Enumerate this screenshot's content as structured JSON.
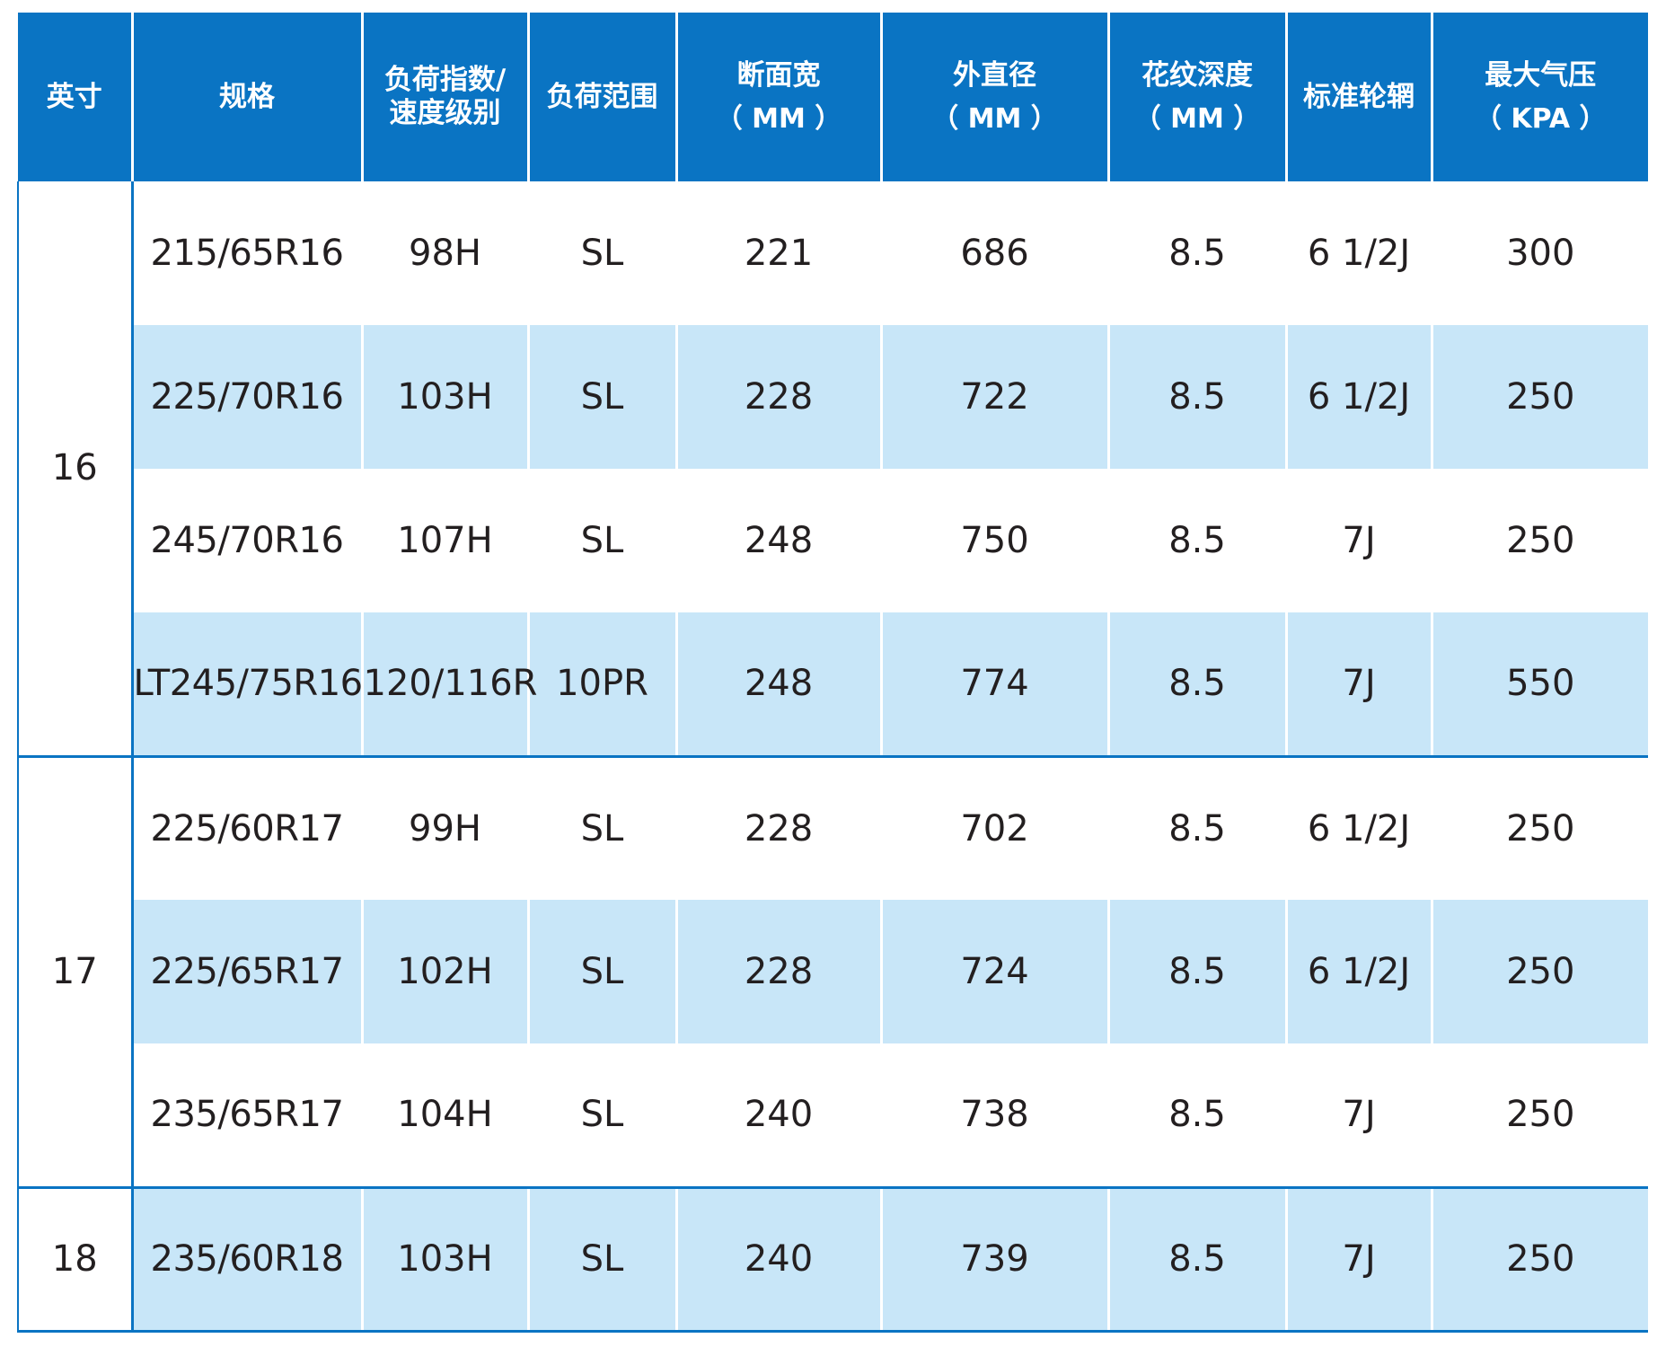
{
  "header": {
    "inch": "英寸",
    "spec": "规格",
    "load_speed_line1": "负荷指数/",
    "load_speed_line2": "速度级别",
    "load_range": "负荷范围",
    "section_width": "断面宽",
    "section_width_unit": "（ MM ）",
    "outer_diameter": "外直径",
    "outer_diameter_unit": "（ MM ）",
    "tread_depth": "花纹深度",
    "tread_depth_unit": "（ MM ）",
    "std_rim": "标准轮辋",
    "max_pressure": "最大气压",
    "max_pressure_unit": "（ KPA ）"
  },
  "groups": [
    {
      "inch": "16",
      "rows": [
        {
          "spec": "215/65R16",
          "load_speed": "98H",
          "load_range": "SL",
          "width": "221",
          "diameter": "686",
          "depth": "8.5",
          "rim": "6 1/2J",
          "pressure": "300"
        },
        {
          "spec": "225/70R16",
          "load_speed": "103H",
          "load_range": "SL",
          "width": "228",
          "diameter": "722",
          "depth": "8.5",
          "rim": "6 1/2J",
          "pressure": "250"
        },
        {
          "spec": "245/70R16",
          "load_speed": "107H",
          "load_range": "SL",
          "width": "248",
          "diameter": "750",
          "depth": "8.5",
          "rim": "7J",
          "pressure": "250"
        },
        {
          "spec": "LT245/75R16",
          "load_speed": "120/116R",
          "load_range": "10PR",
          "width": "248",
          "diameter": "774",
          "depth": "8.5",
          "rim": "7J",
          "pressure": "550"
        }
      ]
    },
    {
      "inch": "17",
      "rows": [
        {
          "spec": "225/60R17",
          "load_speed": "99H",
          "load_range": "SL",
          "width": "228",
          "diameter": "702",
          "depth": "8.5",
          "rim": "6 1/2J",
          "pressure": "250"
        },
        {
          "spec": "225/65R17",
          "load_speed": "102H",
          "load_range": "SL",
          "width": "228",
          "diameter": "724",
          "depth": "8.5",
          "rim": "6 1/2J",
          "pressure": "250"
        },
        {
          "spec": "235/65R17",
          "load_speed": "104H",
          "load_range": "SL",
          "width": "240",
          "diameter": "738",
          "depth": "8.5",
          "rim": "7J",
          "pressure": "250"
        }
      ]
    },
    {
      "inch": "18",
      "rows": [
        {
          "spec": "235/60R18",
          "load_speed": "103H",
          "load_range": "SL",
          "width": "240",
          "diameter": "739",
          "depth": "8.5",
          "rim": "7J",
          "pressure": "250"
        }
      ]
    }
  ],
  "colors": {
    "header_bg": "#0a74c3",
    "stripe_bg": "#c8e6f8",
    "text": "#231f20"
  }
}
